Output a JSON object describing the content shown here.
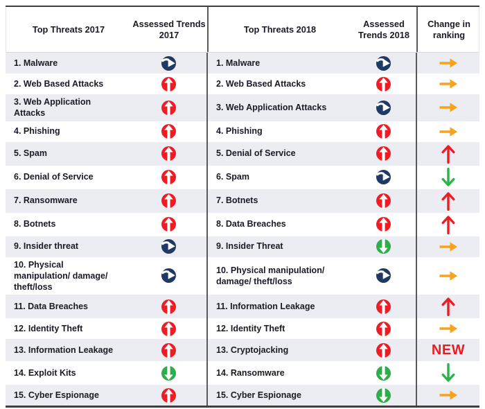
{
  "table": {
    "headers": {
      "threats_2017": "Top Threats 2017",
      "trends_2017": "Assessed Trends 2017",
      "threats_2018": "Top Threats 2018",
      "trends_2018": "Assessed Trends 2018",
      "change": "Change in ranking"
    },
    "rows": [
      {
        "threat_2017": "1. Malware",
        "trend_2017": "stable",
        "threat_2018": "1. Malware",
        "trend_2018": "stable",
        "change": "same"
      },
      {
        "threat_2017": "2. Web Based Attacks",
        "trend_2017": "increasing",
        "threat_2018": "2. Web Based Attacks",
        "trend_2018": "increasing",
        "change": "same"
      },
      {
        "threat_2017": "3. Web Application Attacks",
        "trend_2017": "increasing",
        "threat_2018": "3. Web Application Attacks",
        "trend_2018": "stable",
        "change": "same"
      },
      {
        "threat_2017": "4. Phishing",
        "trend_2017": "increasing",
        "threat_2018": "4. Phishing",
        "trend_2018": "increasing",
        "change": "same"
      },
      {
        "threat_2017": "5. Spam",
        "trend_2017": "increasing",
        "threat_2018": "5. Denial of Service",
        "trend_2018": "increasing",
        "change": "up"
      },
      {
        "threat_2017": "6. Denial of Service",
        "trend_2017": "increasing",
        "threat_2018": "6. Spam",
        "trend_2018": "stable",
        "change": "down"
      },
      {
        "threat_2017": "7. Ransomware",
        "trend_2017": "increasing",
        "threat_2018": "7. Botnets",
        "trend_2018": "increasing",
        "change": "up"
      },
      {
        "threat_2017": "8. Botnets",
        "trend_2017": "increasing",
        "threat_2018": "8. Data Breaches",
        "trend_2018": "increasing",
        "change": "up"
      },
      {
        "threat_2017": "9. Insider threat",
        "trend_2017": "stable",
        "threat_2018": "9. Insider Threat",
        "trend_2018": "decreasing",
        "change": "same"
      },
      {
        "threat_2017": "10. Physical manipulation/ damage/ theft/loss",
        "trend_2017": "stable",
        "threat_2018": "10. Physical manipulation/ damage/ theft/loss",
        "trend_2018": "stable",
        "change": "same"
      },
      {
        "threat_2017": "11. Data Breaches",
        "trend_2017": "increasing",
        "threat_2018": "11. Information Leakage",
        "trend_2018": "increasing",
        "change": "up"
      },
      {
        "threat_2017": "12. Identity Theft",
        "trend_2017": "increasing",
        "threat_2018": "12. Identity Theft",
        "trend_2018": "increasing",
        "change": "same"
      },
      {
        "threat_2017": "13. Information Leakage",
        "trend_2017": "increasing",
        "threat_2018": "13. Cryptojacking",
        "trend_2018": "increasing",
        "change": "new"
      },
      {
        "threat_2017": "14. Exploit Kits",
        "trend_2017": "decreasing",
        "threat_2018": "14. Ransomware",
        "trend_2018": "decreasing",
        "change": "down"
      },
      {
        "threat_2017": "15. Cyber Espionage",
        "trend_2017": "increasing",
        "threat_2018": "15. Cyber Espionage",
        "trend_2018": "decreasing",
        "change": "same"
      }
    ]
  },
  "labels": {
    "new": "NEW"
  },
  "icons": {
    "increasing": "red-circle-up-arrow-icon",
    "stable": "navy-circle-right-arrow-icon",
    "decreasing": "green-circle-down-arrow-icon",
    "same": "orange-right-arrow-icon",
    "up": "red-up-arrow-icon",
    "down": "green-down-arrow-icon"
  },
  "colors": {
    "text": "#1a1a26",
    "row_alt_bg": "#ecedf3",
    "divider": "#595959",
    "trend_increasing": "#ee1c25",
    "trend_stable": "#1f3864",
    "trend_decreasing": "#2fac4b",
    "change_same": "#f9a11b",
    "change_up": "#ed1c24",
    "change_down": "#2bb34b",
    "change_new_text": "#ed1c24"
  },
  "chart_data": {
    "type": "table",
    "columns": [
      "Top Threats 2017",
      "Assessed Trends 2017",
      "Top Threats 2018",
      "Assessed Trends 2018",
      "Change in ranking"
    ],
    "rows": [
      [
        "1. Malware",
        "stable",
        "1. Malware",
        "stable",
        "same"
      ],
      [
        "2. Web Based Attacks",
        "increasing",
        "2. Web Based Attacks",
        "increasing",
        "same"
      ],
      [
        "3. Web Application Attacks",
        "increasing",
        "3. Web Application Attacks",
        "stable",
        "same"
      ],
      [
        "4. Phishing",
        "increasing",
        "4. Phishing",
        "increasing",
        "same"
      ],
      [
        "5. Spam",
        "increasing",
        "5. Denial of Service",
        "increasing",
        "up"
      ],
      [
        "6. Denial of Service",
        "increasing",
        "6. Spam",
        "stable",
        "down"
      ],
      [
        "7. Ransomware",
        "increasing",
        "7. Botnets",
        "increasing",
        "up"
      ],
      [
        "8. Botnets",
        "increasing",
        "8. Data Breaches",
        "increasing",
        "up"
      ],
      [
        "9. Insider threat",
        "stable",
        "9. Insider Threat",
        "decreasing",
        "same"
      ],
      [
        "10. Physical manipulation/ damage/ theft/loss",
        "stable",
        "10. Physical manipulation/ damage/ theft/loss",
        "stable",
        "same"
      ],
      [
        "11. Data Breaches",
        "increasing",
        "11. Information Leakage",
        "increasing",
        "up"
      ],
      [
        "12. Identity Theft",
        "increasing",
        "12. Identity Theft",
        "increasing",
        "same"
      ],
      [
        "13. Information Leakage",
        "increasing",
        "13. Cryptojacking",
        "increasing",
        "new"
      ],
      [
        "14. Exploit Kits",
        "decreasing",
        "14. Ransomware",
        "decreasing",
        "down"
      ],
      [
        "15. Cyber Espionage",
        "increasing",
        "15. Cyber Espionage",
        "decreasing",
        "same"
      ]
    ]
  }
}
